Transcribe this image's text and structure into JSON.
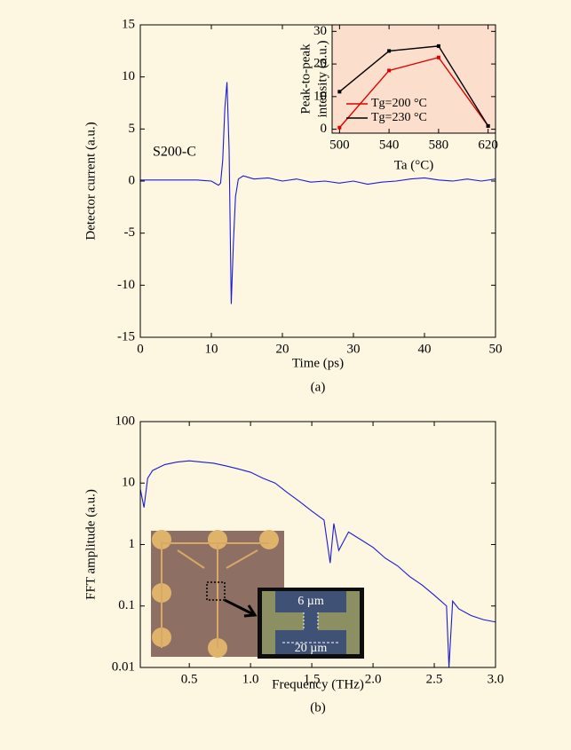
{
  "chart_data": [
    {
      "type": "line",
      "xlabel": "Time (ps)",
      "ylabel": "Detector current (a.u.)",
      "annotation": "S200-C",
      "panel_label": "(a)",
      "x": [
        0,
        2,
        4,
        6,
        8,
        9,
        10,
        10.5,
        11,
        11.3,
        11.6,
        11.9,
        12.2,
        12.5,
        12.8,
        13.1,
        13.4,
        13.8,
        14.5,
        15,
        16,
        18,
        20,
        22,
        24,
        26,
        28,
        30,
        32,
        34,
        36,
        38,
        40,
        42,
        44,
        46,
        48,
        50
      ],
      "values": [
        0.1,
        0.1,
        0.1,
        0.1,
        0.1,
        0.05,
        0,
        -0.2,
        -0.4,
        -0.2,
        2,
        7,
        9.5,
        3,
        -11.8,
        -6,
        -1.5,
        0.2,
        0.5,
        0.4,
        0.2,
        0.3,
        0,
        0.2,
        -0.1,
        0,
        -0.2,
        0,
        -0.3,
        -0.1,
        0,
        0.2,
        0.3,
        0.1,
        0,
        0.2,
        0,
        0.2
      ],
      "color": "#1a1adb",
      "xlim": [
        0,
        50
      ],
      "ylim": [
        -15,
        15
      ],
      "xticks": [
        0,
        10,
        20,
        30,
        40,
        50
      ],
      "yticks": [
        -15,
        -10,
        -5,
        0,
        5,
        10,
        15
      ]
    },
    {
      "type": "line",
      "xlabel": "Ta (°C)",
      "ylabel": [
        "Peak-to-peak",
        "intensity (a.u.)"
      ],
      "x": [
        500,
        540,
        580,
        620
      ],
      "series": [
        {
          "name": "Tg=200 °C",
          "color": "#e00000",
          "values": [
            0.5,
            18,
            22,
            1
          ]
        },
        {
          "name": "Tg=230 °C",
          "color": "#000000",
          "values": [
            11.5,
            24,
            25.5,
            1
          ]
        }
      ],
      "background": "#fbdfcc",
      "markers": true,
      "xlim": [
        494,
        626
      ],
      "ylim": [
        -1.2,
        32
      ],
      "xticks": [
        500,
        540,
        580,
        620
      ],
      "yticks": [
        0,
        10,
        20,
        30
      ]
    },
    {
      "type": "line",
      "xlabel": "Frequency (THz)",
      "ylabel": "FFT amplitude (a.u.)",
      "panel_label": "(b)",
      "annotations": [
        "6 µm",
        "20 µm"
      ],
      "x": [
        0.1,
        0.13,
        0.16,
        0.2,
        0.3,
        0.4,
        0.5,
        0.6,
        0.7,
        0.8,
        0.9,
        1.0,
        1.1,
        1.2,
        1.3,
        1.4,
        1.5,
        1.6,
        1.65,
        1.68,
        1.72,
        1.8,
        1.9,
        2.0,
        2.1,
        2.2,
        2.3,
        2.4,
        2.5,
        2.6,
        2.62,
        2.65,
        2.7,
        2.8,
        2.9,
        3.0
      ],
      "values": [
        8,
        4,
        12,
        16,
        20,
        22,
        23,
        22,
        21,
        19,
        17,
        15,
        12,
        10,
        7,
        5,
        3.5,
        2.5,
        0.5,
        2.2,
        0.8,
        1.6,
        1.2,
        0.9,
        0.6,
        0.45,
        0.3,
        0.22,
        0.15,
        0.1,
        0.01,
        0.12,
        0.09,
        0.07,
        0.06,
        0.055
      ],
      "color": "#1a1adb",
      "log_y": true,
      "xlim": [
        0.1,
        3.0
      ],
      "ylim": [
        0.01,
        100
      ],
      "xticks": [
        0.5,
        {
          "value": 1,
          "label": "1.0"
        },
        1.5,
        {
          "value": 2,
          "label": "2.0"
        },
        2.5,
        {
          "value": 3,
          "label": "3.0"
        }
      ],
      "yticks": [
        0.01,
        0.1,
        1,
        10,
        100
      ]
    }
  ]
}
